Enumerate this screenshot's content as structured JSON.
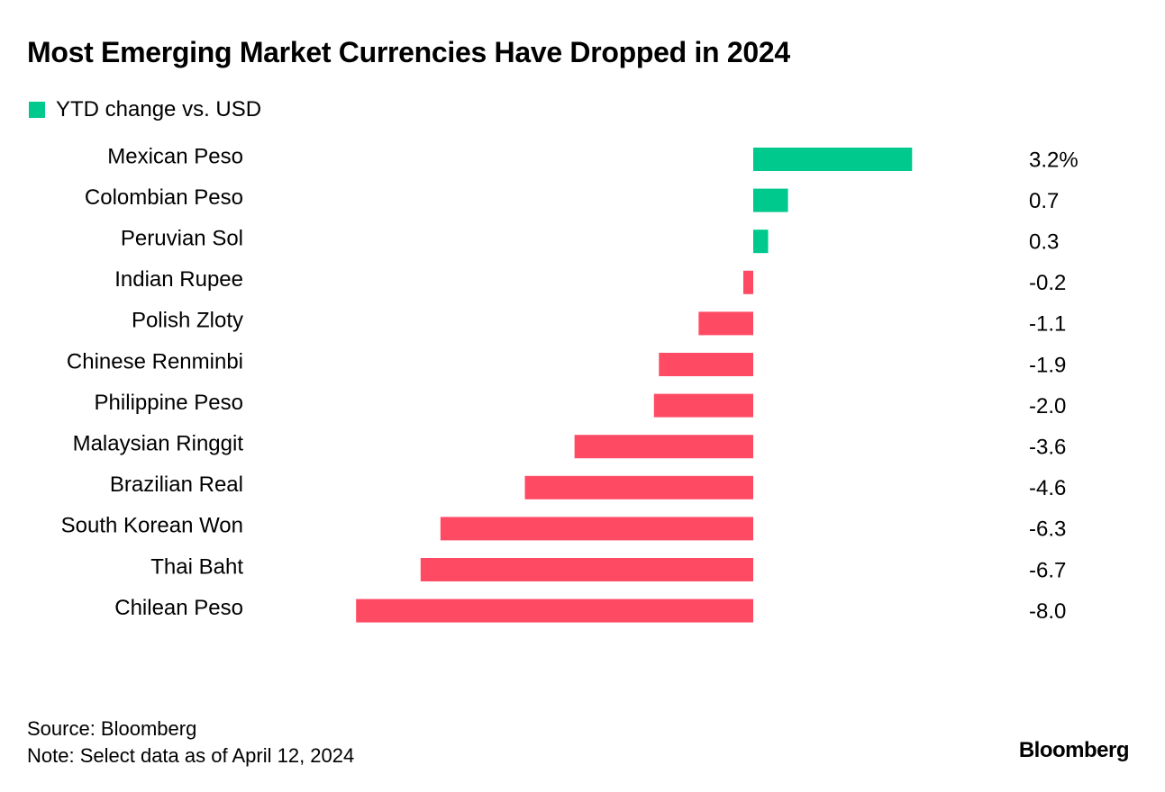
{
  "chart_data": {
    "type": "bar",
    "orientation": "horizontal",
    "title": "Most Emerging Market Currencies Have Dropped in 2024",
    "legend": {
      "label": "YTD change vs. USD",
      "placement": "top-left"
    },
    "categories": [
      "Mexican Peso",
      "Colombian Peso",
      "Peruvian Sol",
      "Indian Rupee",
      "Polish Zloty",
      "Chinese Renminbi",
      "Philippine Peso",
      "Malaysian Ringgit",
      "Brazilian Real",
      "South Korean Won",
      "Thai Baht",
      "Chilean Peso"
    ],
    "values": [
      3.2,
      0.7,
      0.3,
      -0.2,
      -1.1,
      -1.9,
      -2.0,
      -3.6,
      -4.6,
      -6.3,
      -6.7,
      -8.0
    ],
    "value_labels": [
      "3.2%",
      "0.7",
      "0.3",
      "-0.2",
      "-1.1",
      "-1.9",
      "-2.0",
      "-3.6",
      "-4.6",
      "-6.3",
      "-6.7",
      "-8.0"
    ],
    "xlim": [
      -8.0,
      3.2
    ],
    "colors": {
      "positive": "#00c98d",
      "negative": "#ff4a64"
    },
    "grid": false
  },
  "footer": {
    "source": "Source: Bloomberg",
    "note": "Note: Select data as of April 12, 2024"
  },
  "logo": "Bloomberg"
}
